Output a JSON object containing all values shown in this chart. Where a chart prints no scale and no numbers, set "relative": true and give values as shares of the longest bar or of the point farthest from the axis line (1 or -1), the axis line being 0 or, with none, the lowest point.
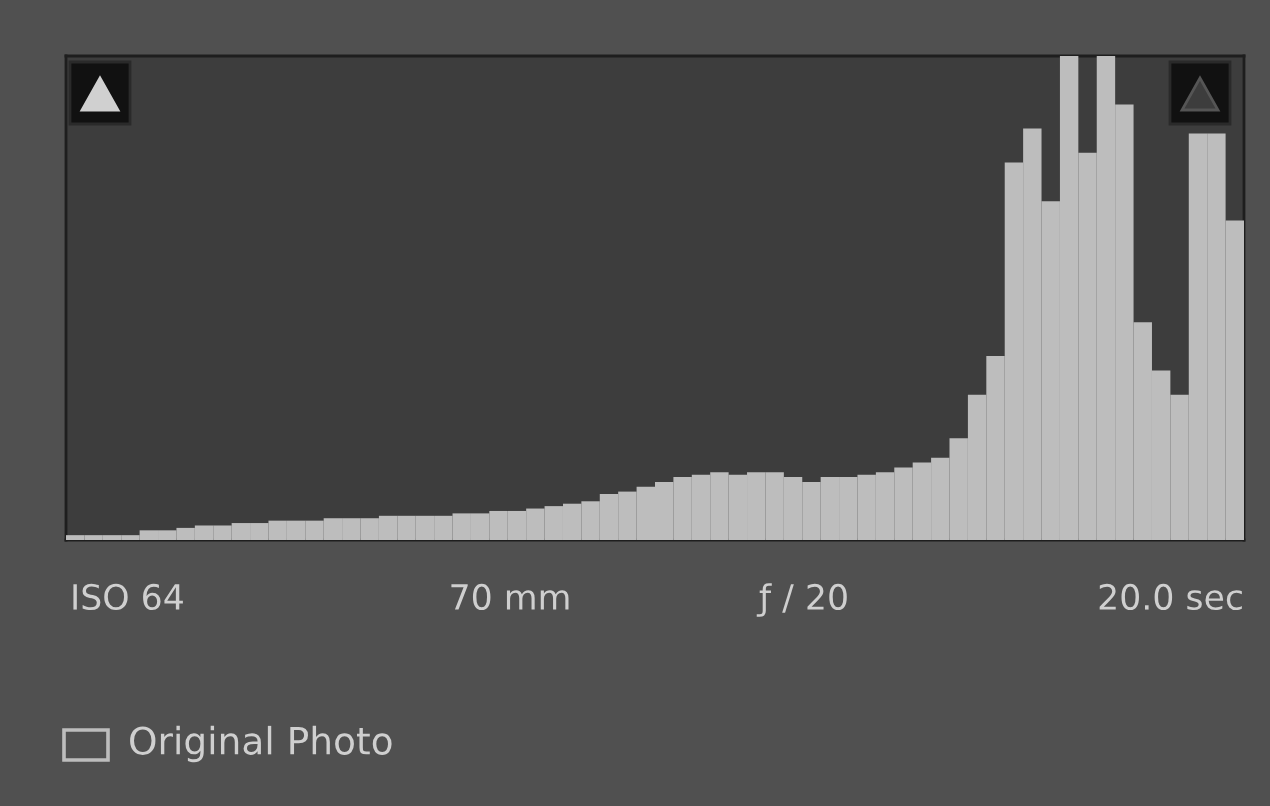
{
  "chart_data": {
    "type": "bar",
    "relative": true,
    "color": "#bdbdbd",
    "categories": [
      null,
      null,
      null,
      null,
      null,
      null,
      null,
      null,
      null,
      null,
      null,
      null,
      null,
      null,
      null,
      null,
      null,
      null,
      null,
      null,
      null,
      null,
      null,
      null,
      null,
      null,
      null,
      null,
      null,
      null,
      null,
      null,
      null,
      null,
      null,
      null,
      null,
      null,
      null,
      null,
      null,
      null,
      null,
      null,
      null,
      null,
      null,
      null,
      null,
      null,
      null,
      null,
      null,
      null,
      null,
      null,
      null,
      null,
      null,
      null,
      null,
      null,
      null,
      null
    ],
    "values": [
      0.01,
      0.01,
      0.01,
      0.01,
      0.02,
      0.02,
      0.025,
      0.03,
      0.03,
      0.035,
      0.035,
      0.04,
      0.04,
      0.04,
      0.045,
      0.045,
      0.045,
      0.05,
      0.05,
      0.05,
      0.05,
      0.055,
      0.055,
      0.06,
      0.06,
      0.065,
      0.07,
      0.075,
      0.08,
      0.095,
      0.1,
      0.11,
      0.12,
      0.13,
      0.135,
      0.14,
      0.135,
      0.14,
      0.14,
      0.13,
      0.12,
      0.13,
      0.13,
      0.135,
      0.14,
      0.15,
      0.16,
      0.17,
      0.21,
      0.3,
      0.38,
      0.78,
      0.85,
      0.7,
      1.0,
      0.8,
      1.0,
      0.9,
      0.45,
      0.35,
      0.3,
      0.84,
      0.84,
      0.66
    ],
    "annotations": [
      "ISO 64",
      "70 mm",
      "ƒ / 20",
      "20.0 sec",
      "Original Photo"
    ]
  }
}
